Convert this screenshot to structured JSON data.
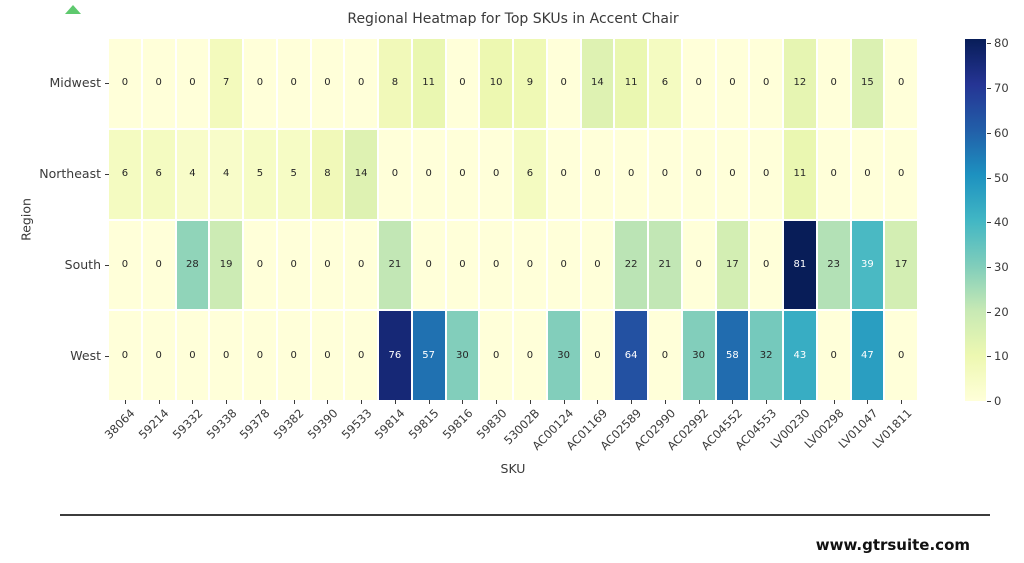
{
  "icons": {
    "up_triangle": {
      "name": "green-up-triangle-icon",
      "color": "#5ec96e"
    }
  },
  "footer": {
    "url": "www.gtrsuite.com"
  },
  "chart_data": {
    "type": "heatmap",
    "title": "Regional Heatmap for Top SKUs in Accent Chair",
    "xlabel": "SKU",
    "ylabel": "Region",
    "categories_x": [
      "38064",
      "59214",
      "59332",
      "59338",
      "59378",
      "59382",
      "59390",
      "59533",
      "59814",
      "59815",
      "59816",
      "59830",
      "53002B",
      "AC00124",
      "AC01169",
      "AC02589",
      "AC02990",
      "AC02992",
      "AC04552",
      "AC04553",
      "LV00230",
      "LV00298",
      "LV01047",
      "LV01811"
    ],
    "categories_y": [
      "Midwest",
      "Northeast",
      "South",
      "West"
    ],
    "values": [
      [
        0,
        0,
        0,
        7,
        0,
        0,
        0,
        0,
        8,
        11,
        0,
        10,
        9,
        0,
        14,
        11,
        6,
        0,
        0,
        0,
        12,
        0,
        15,
        0
      ],
      [
        6,
        6,
        4,
        4,
        5,
        5,
        8,
        14,
        0,
        0,
        0,
        0,
        6,
        0,
        0,
        0,
        0,
        0,
        0,
        0,
        11,
        0,
        0,
        0
      ],
      [
        0,
        0,
        28,
        19,
        0,
        0,
        0,
        0,
        21,
        0,
        0,
        0,
        0,
        0,
        0,
        22,
        21,
        0,
        17,
        0,
        81,
        23,
        39,
        17
      ],
      [
        0,
        0,
        0,
        0,
        0,
        0,
        0,
        0,
        76,
        57,
        30,
        0,
        0,
        30,
        0,
        64,
        0,
        30,
        58,
        32,
        43,
        0,
        47,
        0
      ]
    ],
    "vmin": 0,
    "vmax": 81,
    "colormap": "YlGnBu",
    "colormap_stops": [
      "#ffffd9",
      "#edf8b1",
      "#c7e9b4",
      "#7fcdbb",
      "#41b6c4",
      "#1d91c0",
      "#225ea8",
      "#253494",
      "#081d58"
    ],
    "colorbar_ticks": [
      0,
      10,
      20,
      30,
      40,
      50,
      60,
      70,
      80
    ],
    "annotation_colors": {
      "dark": "#262626",
      "light": "#ffffff"
    },
    "legend_position": "right",
    "grid": false
  }
}
